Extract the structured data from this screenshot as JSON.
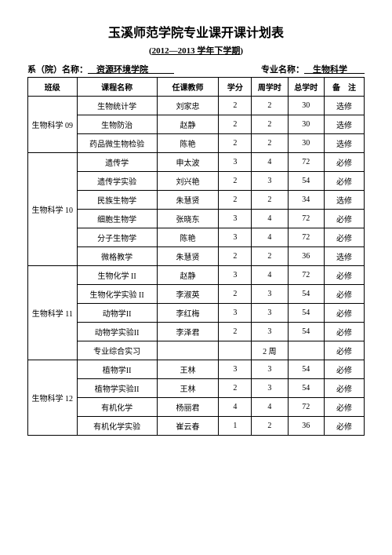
{
  "title": "玉溪师范学院专业课开课计划表",
  "subtitle_prefix": "(",
  "subtitle_main": "2012—2013 学年下学期",
  "subtitle_suffix": ")",
  "info": {
    "dept_label": "系（院）名称：",
    "dept_value": "　资源环境学院　　　",
    "major_label": "专业名称：",
    "major_value": "　生物科学　　"
  },
  "columns": [
    "班级",
    "课程名称",
    "任课教师",
    "学分",
    "周学时",
    "总学时",
    "备　注"
  ],
  "groups": [
    {
      "class": "生物科学 09",
      "rows": [
        {
          "course": "生物统计学",
          "teacher": "刘家忠",
          "credit": "2",
          "week": "2",
          "total": "30",
          "note": "选修"
        },
        {
          "course": "生物防治",
          "teacher": "赵静",
          "credit": "2",
          "week": "2",
          "total": "30",
          "note": "选修"
        },
        {
          "course": "药品微生物检验",
          "teacher": "陈艳",
          "credit": "2",
          "week": "2",
          "total": "30",
          "note": "选修"
        }
      ]
    },
    {
      "class": "生物科学 10",
      "rows": [
        {
          "course": "遗传学",
          "teacher": "申太波",
          "credit": "3",
          "week": "4",
          "total": "72",
          "note": "必修"
        },
        {
          "course": "遗传学实验",
          "teacher": "刘兴艳",
          "credit": "2",
          "week": "3",
          "total": "54",
          "note": "必修"
        },
        {
          "course": "民族生物学",
          "teacher": "朱慧贤",
          "credit": "2",
          "week": "2",
          "total": "34",
          "note": "选修"
        },
        {
          "course": "细胞生物学",
          "teacher": "张晓东",
          "credit": "3",
          "week": "4",
          "total": "72",
          "note": "必修"
        },
        {
          "course": "分子生物学",
          "teacher": "陈艳",
          "credit": "3",
          "week": "4",
          "total": "72",
          "note": "必修"
        },
        {
          "course": "微格教学",
          "teacher": "朱慧贤",
          "credit": "2",
          "week": "2",
          "total": "36",
          "note": "选修"
        }
      ]
    },
    {
      "class": "生物科学 11",
      "rows": [
        {
          "course": "生物化学 II",
          "teacher": "赵静",
          "credit": "3",
          "week": "4",
          "total": "72",
          "note": "必修"
        },
        {
          "course": "生物化学实验 II",
          "teacher": "李淑英",
          "credit": "2",
          "week": "3",
          "total": "54",
          "note": "必修"
        },
        {
          "course": "动物学II",
          "teacher": "李红梅",
          "credit": "3",
          "week": "3",
          "total": "54",
          "note": "必修"
        },
        {
          "course": "动物学实验II",
          "teacher": "李泽君",
          "credit": "2",
          "week": "3",
          "total": "54",
          "note": "必修"
        },
        {
          "course": "专业综合实习",
          "teacher": "",
          "credit": "",
          "week": "2 周",
          "total": "",
          "note": "必修"
        }
      ]
    },
    {
      "class": "生物科学 12",
      "rows": [
        {
          "course": "植物学II",
          "teacher": "王林",
          "credit": "3",
          "week": "3",
          "total": "54",
          "note": "必修"
        },
        {
          "course": "植物学实验II",
          "teacher": "王林",
          "credit": "2",
          "week": "3",
          "total": "54",
          "note": "必修"
        },
        {
          "course": "有机化学",
          "teacher": "杨丽君",
          "credit": "4",
          "week": "4",
          "total": "72",
          "note": "必修"
        },
        {
          "course": "有机化学实验",
          "teacher": "崔云春",
          "credit": "1",
          "week": "2",
          "total": "36",
          "note": "必修"
        }
      ]
    }
  ]
}
